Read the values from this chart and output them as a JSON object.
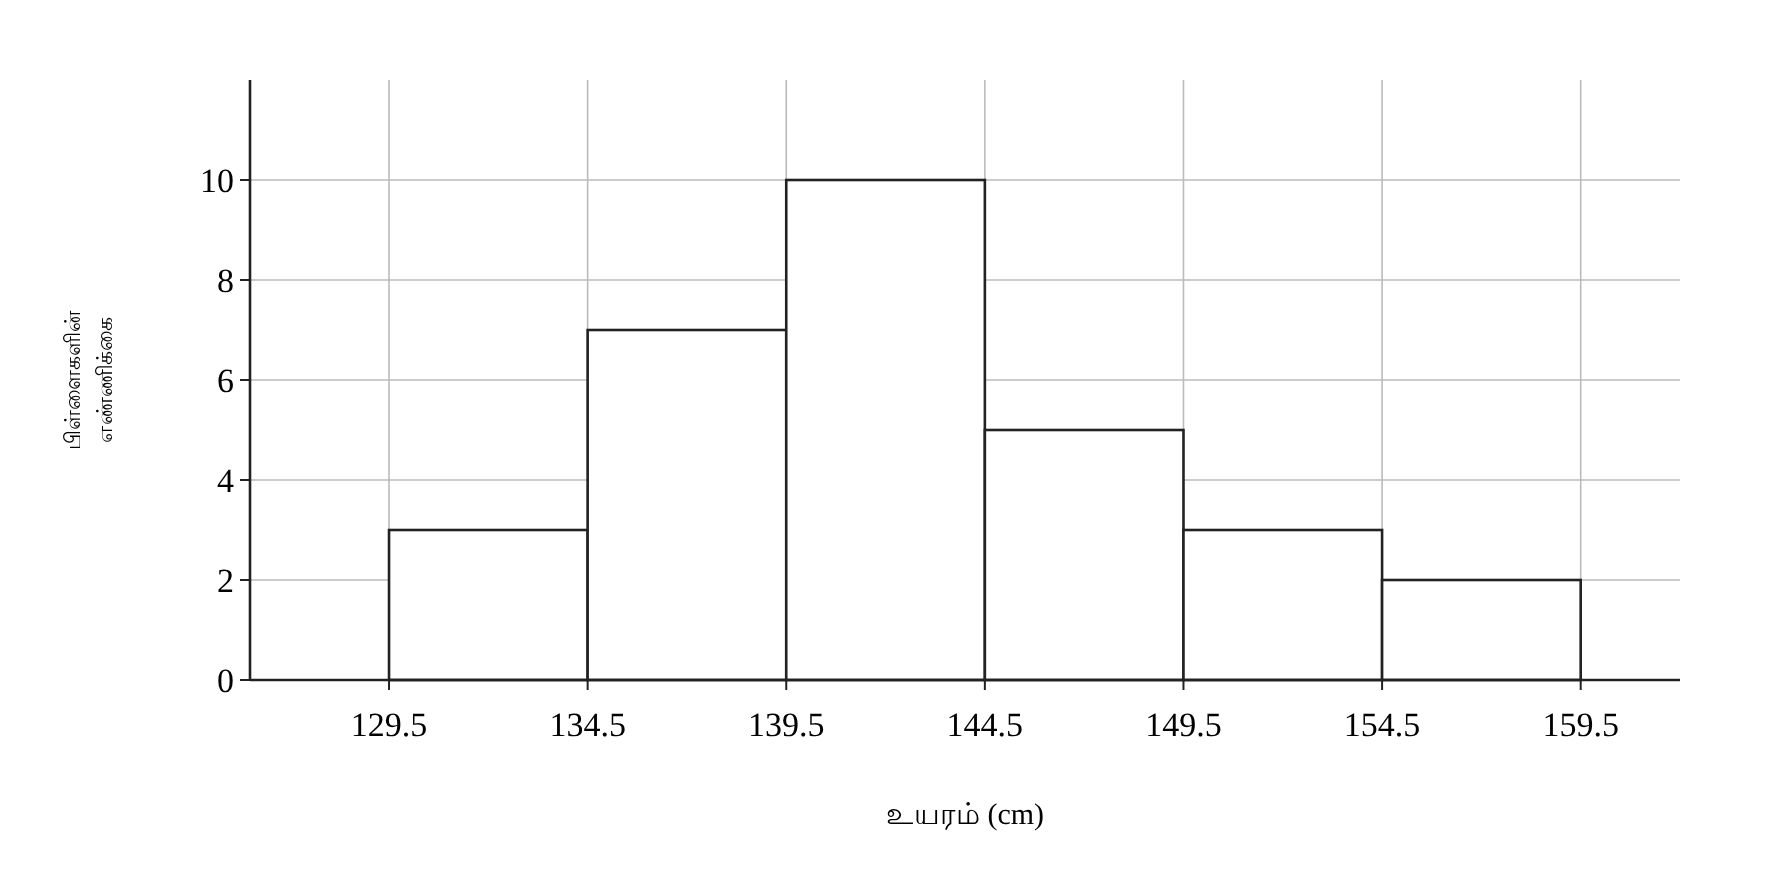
{
  "chart_data": {
    "type": "histogram",
    "xlabel": "உயரம் (cm)",
    "ylabel": "பிள்ளைகளின்\nஎண்ணிக்கை",
    "bins": [
      129.5,
      134.5,
      139.5,
      144.5,
      149.5,
      154.5,
      159.5
    ],
    "values": [
      3,
      7,
      10,
      5,
      3,
      2
    ],
    "color": "#ffffff",
    "xlim": [
      126,
      162
    ],
    "xticks": [
      129.5,
      134.5,
      139.5,
      144.5,
      149.5,
      154.5,
      159.5
    ],
    "ylim": [
      0,
      12
    ],
    "yticks": [
      0,
      2,
      4,
      6,
      8,
      10
    ],
    "grid": true
  }
}
